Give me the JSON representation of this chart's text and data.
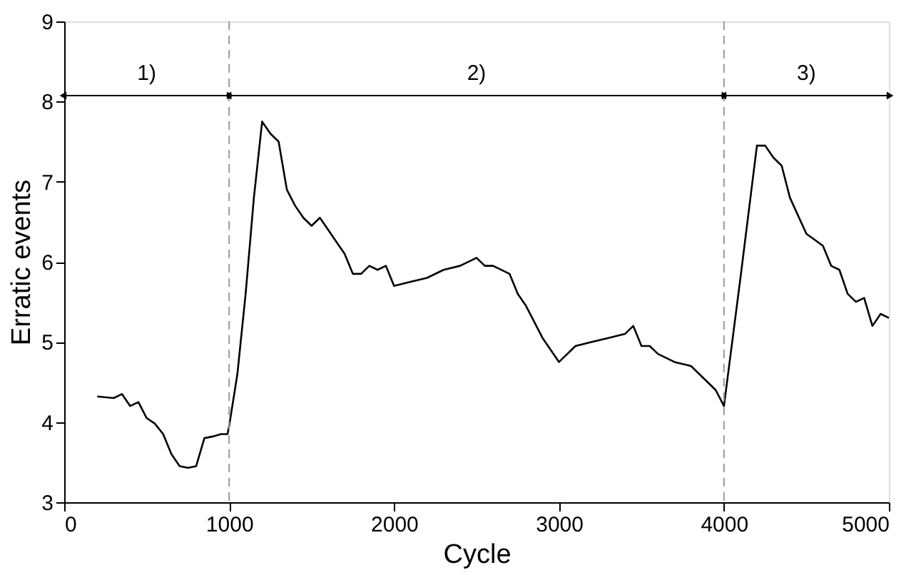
{
  "chart_data": {
    "type": "line",
    "xlabel": "Cycle",
    "ylabel": "Erratic events",
    "x": [
      200,
      300,
      350,
      400,
      450,
      500,
      550,
      600,
      650,
      700,
      750,
      800,
      850,
      900,
      950,
      990,
      1000,
      1050,
      1100,
      1150,
      1200,
      1250,
      1300,
      1350,
      1400,
      1450,
      1500,
      1550,
      1600,
      1650,
      1700,
      1750,
      1800,
      1850,
      1900,
      1950,
      2000,
      2100,
      2200,
      2300,
      2400,
      2500,
      2550,
      2600,
      2700,
      2750,
      2800,
      2900,
      3000,
      3050,
      3100,
      3200,
      3300,
      3400,
      3450,
      3500,
      3550,
      3600,
      3700,
      3800,
      3900,
      3950,
      4000,
      4050,
      4100,
      4200,
      4250,
      4300,
      4350,
      4400,
      4500,
      4600,
      4650,
      4700,
      4750,
      4800,
      4850,
      4900,
      4950,
      5000
    ],
    "series": [
      {
        "color": "#000000",
        "values": [
          4.32,
          4.3,
          4.35,
          4.2,
          4.25,
          4.05,
          3.98,
          3.85,
          3.6,
          3.45,
          3.43,
          3.45,
          3.8,
          3.82,
          3.85,
          3.85,
          3.95,
          4.6,
          5.6,
          6.8,
          7.75,
          7.6,
          7.5,
          6.9,
          6.7,
          6.55,
          6.45,
          6.55,
          6.4,
          6.25,
          6.1,
          5.85,
          5.85,
          5.95,
          5.9,
          5.95,
          5.7,
          5.75,
          5.8,
          5.9,
          5.95,
          6.05,
          5.95,
          5.95,
          5.85,
          5.6,
          5.45,
          5.05,
          4.75,
          4.85,
          4.95,
          5.0,
          5.05,
          5.1,
          5.2,
          4.95,
          4.95,
          4.85,
          4.75,
          4.7,
          4.5,
          4.4,
          4.2,
          5.0,
          5.8,
          7.45,
          7.45,
          7.3,
          7.2,
          6.8,
          6.35,
          6.2,
          5.95,
          5.9,
          5.6,
          5.5,
          5.55,
          5.2,
          5.35,
          5.3
        ]
      }
    ],
    "xlim": [
      0,
      5000
    ],
    "xticks": [
      0,
      1000,
      2000,
      3000,
      4000,
      5000
    ],
    "ylim": [
      3,
      9
    ],
    "yticks": [
      3,
      4,
      5,
      6,
      7,
      8,
      9
    ],
    "ref_lines": [
      {
        "axis": "x",
        "value": 1000,
        "color": "#999999",
        "line_style": "dashed"
      },
      {
        "axis": "x",
        "value": 4000,
        "color": "#999999",
        "line_style": "dashed"
      }
    ],
    "annotations": [
      "1)",
      "2)",
      "3)"
    ],
    "grid": false,
    "marker": "none",
    "line_style": "solid"
  }
}
